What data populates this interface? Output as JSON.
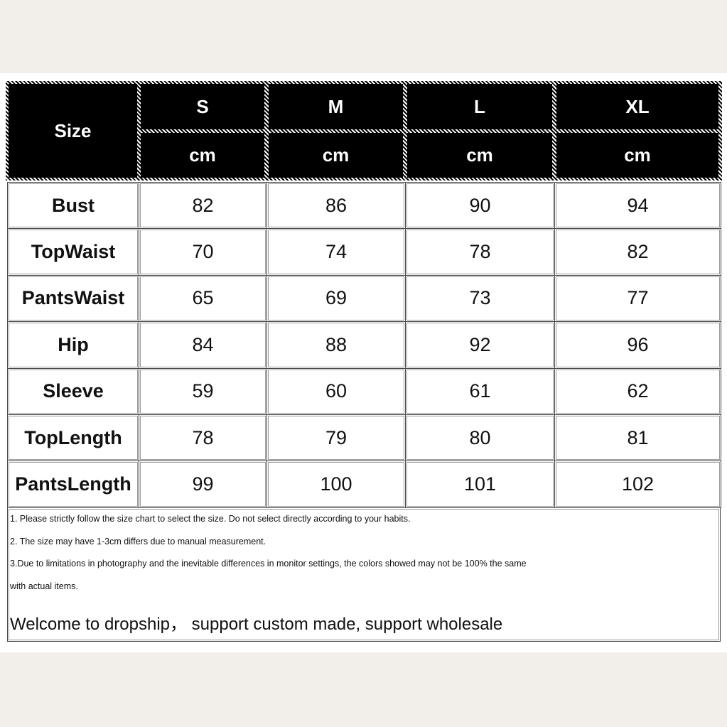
{
  "header": {
    "size_label": "Size",
    "sizes": [
      "S",
      "M",
      "L",
      "XL"
    ],
    "units": [
      "cm",
      "cm",
      "cm",
      "cm"
    ]
  },
  "table": {
    "rows": [
      {
        "label": "Bust",
        "values": [
          82,
          86,
          90,
          94
        ]
      },
      {
        "label": "TopWaist",
        "values": [
          70,
          74,
          78,
          82
        ]
      },
      {
        "label": "PantsWaist",
        "values": [
          65,
          69,
          73,
          77
        ]
      },
      {
        "label": "Hip",
        "values": [
          84,
          88,
          92,
          96
        ]
      },
      {
        "label": "Sleeve",
        "values": [
          59,
          60,
          61,
          62
        ]
      },
      {
        "label": "TopLength",
        "values": [
          78,
          79,
          80,
          81
        ]
      },
      {
        "label": "PantsLength",
        "values": [
          99,
          100,
          101,
          102
        ]
      }
    ]
  },
  "notes": [
    "1. Please strictly follow the size chart to select the size. Do not select directly according to your habits.",
    "2. The size may have 1-3cm differs due to manual measurement.",
    "3.Due to limitations in photography and the inevitable differences in monitor settings, the colors showed may not be 100% the same",
    "with actual items."
  ],
  "welcome": "Welcome to dropship， support custom made, support wholesale"
}
